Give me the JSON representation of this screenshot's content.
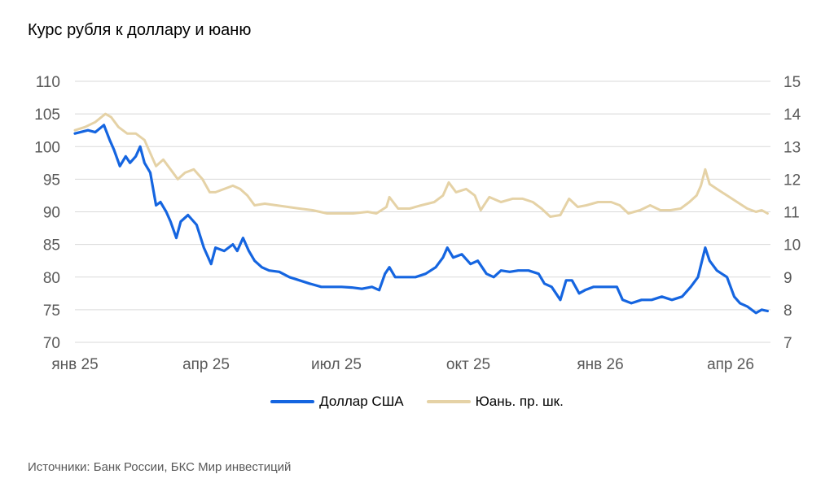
{
  "title": "Курс рубля к доллару и юаню",
  "source": "Источники: Банк России, БКС Мир инвестиций",
  "colors": {
    "usd": "#1565E0",
    "cny": "#E5D2A6",
    "grid": "#D9D9D9",
    "tick": "#595959"
  },
  "chart_data": {
    "type": "line",
    "x_ticks": [
      "янв 25",
      "апр 25",
      "июл 25",
      "окт 25",
      "янв 26",
      "апр 26"
    ],
    "y_left": {
      "ticks": [
        70,
        75,
        80,
        85,
        90,
        95,
        100,
        105,
        110
      ],
      "ylim": [
        70,
        110
      ]
    },
    "y_right": {
      "ticks": [
        7,
        8,
        9,
        10,
        11,
        12,
        13,
        14,
        15
      ],
      "ylim": [
        7,
        15
      ]
    },
    "grid": true,
    "legend_position": "bottom",
    "series": [
      {
        "name": "Доллар США",
        "axis": "left",
        "points": [
          [
            "2025-01-01",
            102.0
          ],
          [
            "2025-01-10",
            102.5
          ],
          [
            "2025-01-15",
            102.2
          ],
          [
            "2025-01-21",
            103.3
          ],
          [
            "2025-01-25",
            101.0
          ],
          [
            "2025-01-28",
            99.5
          ],
          [
            "2025-02-01",
            97.0
          ],
          [
            "2025-02-05",
            98.5
          ],
          [
            "2025-02-08",
            97.5
          ],
          [
            "2025-02-12",
            98.5
          ],
          [
            "2025-02-15",
            100.0
          ],
          [
            "2025-02-18",
            97.5
          ],
          [
            "2025-02-22",
            96.0
          ],
          [
            "2025-02-26",
            91.0
          ],
          [
            "2025-03-01",
            91.5
          ],
          [
            "2025-03-05",
            90.0
          ],
          [
            "2025-03-08",
            88.5
          ],
          [
            "2025-03-12",
            86.0
          ],
          [
            "2025-03-15",
            88.5
          ],
          [
            "2025-03-20",
            89.5
          ],
          [
            "2025-03-26",
            88.0
          ],
          [
            "2025-03-31",
            84.5
          ],
          [
            "2025-04-05",
            82.0
          ],
          [
            "2025-04-08",
            84.5
          ],
          [
            "2025-04-14",
            84.0
          ],
          [
            "2025-04-20",
            85.0
          ],
          [
            "2025-04-23",
            84.0
          ],
          [
            "2025-04-27",
            86.0
          ],
          [
            "2025-05-01",
            84.0
          ],
          [
            "2025-05-05",
            82.5
          ],
          [
            "2025-05-10",
            81.5
          ],
          [
            "2025-05-15",
            81.0
          ],
          [
            "2025-05-22",
            80.8
          ],
          [
            "2025-05-29",
            80.0
          ],
          [
            "2025-06-05",
            79.5
          ],
          [
            "2025-06-12",
            79.0
          ],
          [
            "2025-06-20",
            78.5
          ],
          [
            "2025-06-27",
            78.5
          ],
          [
            "2025-07-04",
            78.5
          ],
          [
            "2025-07-11",
            78.4
          ],
          [
            "2025-07-18",
            78.2
          ],
          [
            "2025-07-25",
            78.5
          ],
          [
            "2025-07-30",
            78.0
          ],
          [
            "2025-08-03",
            80.5
          ],
          [
            "2025-08-06",
            81.5
          ],
          [
            "2025-08-10",
            80.0
          ],
          [
            "2025-08-17",
            80.0
          ],
          [
            "2025-08-24",
            80.0
          ],
          [
            "2025-08-31",
            80.5
          ],
          [
            "2025-09-07",
            81.5
          ],
          [
            "2025-09-12",
            83.0
          ],
          [
            "2025-09-15",
            84.5
          ],
          [
            "2025-09-19",
            83.0
          ],
          [
            "2025-09-25",
            83.5
          ],
          [
            "2025-10-01",
            82.0
          ],
          [
            "2025-10-06",
            82.5
          ],
          [
            "2025-10-12",
            80.5
          ],
          [
            "2025-10-17",
            80.0
          ],
          [
            "2025-10-22",
            81.0
          ],
          [
            "2025-10-28",
            80.8
          ],
          [
            "2025-11-03",
            81.0
          ],
          [
            "2025-11-10",
            81.0
          ],
          [
            "2025-11-17",
            80.5
          ],
          [
            "2025-11-21",
            79.0
          ],
          [
            "2025-11-26",
            78.5
          ],
          [
            "2025-12-02",
            76.5
          ],
          [
            "2025-12-06",
            79.5
          ],
          [
            "2025-12-10",
            79.5
          ],
          [
            "2025-12-15",
            77.5
          ],
          [
            "2025-12-19",
            78.0
          ],
          [
            "2025-12-25",
            78.5
          ],
          [
            "2026-01-03",
            78.5
          ],
          [
            "2026-01-10",
            78.5
          ],
          [
            "2026-01-14",
            76.5
          ],
          [
            "2026-01-20",
            76.0
          ],
          [
            "2026-01-27",
            76.5
          ],
          [
            "2026-02-03",
            76.5
          ],
          [
            "2026-02-10",
            77.0
          ],
          [
            "2026-02-17",
            76.5
          ],
          [
            "2026-02-24",
            77.0
          ],
          [
            "2026-03-02",
            78.5
          ],
          [
            "2026-03-07",
            80.0
          ],
          [
            "2026-03-12",
            84.5
          ],
          [
            "2026-03-15",
            82.5
          ],
          [
            "2026-03-20",
            81.0
          ],
          [
            "2026-03-27",
            80.0
          ],
          [
            "2026-04-01",
            77.0
          ],
          [
            "2026-04-05",
            76.0
          ],
          [
            "2026-04-10",
            75.5
          ],
          [
            "2026-04-16",
            74.5
          ],
          [
            "2026-04-20",
            75.0
          ],
          [
            "2026-04-24",
            74.8
          ]
        ]
      },
      {
        "name": "Юань. пр. шк.",
        "axis": "right",
        "points": [
          [
            "2025-01-01",
            13.5
          ],
          [
            "2025-01-08",
            13.6
          ],
          [
            "2025-01-15",
            13.75
          ],
          [
            "2025-01-22",
            14.0
          ],
          [
            "2025-01-26",
            13.9
          ],
          [
            "2025-01-31",
            13.6
          ],
          [
            "2025-02-06",
            13.4
          ],
          [
            "2025-02-12",
            13.4
          ],
          [
            "2025-02-18",
            13.2
          ],
          [
            "2025-02-22",
            12.8
          ],
          [
            "2025-02-26",
            12.4
          ],
          [
            "2025-03-03",
            12.6
          ],
          [
            "2025-03-08",
            12.3
          ],
          [
            "2025-03-13",
            12.0
          ],
          [
            "2025-03-18",
            12.2
          ],
          [
            "2025-03-24",
            12.3
          ],
          [
            "2025-03-30",
            12.0
          ],
          [
            "2025-04-04",
            11.6
          ],
          [
            "2025-04-08",
            11.6
          ],
          [
            "2025-04-14",
            11.7
          ],
          [
            "2025-04-20",
            11.8
          ],
          [
            "2025-04-25",
            11.7
          ],
          [
            "2025-04-30",
            11.5
          ],
          [
            "2025-05-05",
            11.2
          ],
          [
            "2025-05-12",
            11.25
          ],
          [
            "2025-05-20",
            11.2
          ],
          [
            "2025-05-28",
            11.15
          ],
          [
            "2025-06-05",
            11.1
          ],
          [
            "2025-06-14",
            11.05
          ],
          [
            "2025-06-24",
            10.95
          ],
          [
            "2025-07-02",
            10.95
          ],
          [
            "2025-07-12",
            10.95
          ],
          [
            "2025-07-22",
            11.0
          ],
          [
            "2025-07-28",
            10.95
          ],
          [
            "2025-08-04",
            11.15
          ],
          [
            "2025-08-06",
            11.45
          ],
          [
            "2025-08-12",
            11.1
          ],
          [
            "2025-08-20",
            11.1
          ],
          [
            "2025-08-28",
            11.2
          ],
          [
            "2025-09-06",
            11.3
          ],
          [
            "2025-09-12",
            11.5
          ],
          [
            "2025-09-16",
            11.9
          ],
          [
            "2025-09-21",
            11.6
          ],
          [
            "2025-09-28",
            11.7
          ],
          [
            "2025-10-04",
            11.5
          ],
          [
            "2025-10-08",
            11.05
          ],
          [
            "2025-10-14",
            11.45
          ],
          [
            "2025-10-22",
            11.3
          ],
          [
            "2025-10-30",
            11.4
          ],
          [
            "2025-11-06",
            11.4
          ],
          [
            "2025-11-13",
            11.3
          ],
          [
            "2025-11-19",
            11.1
          ],
          [
            "2025-11-25",
            10.85
          ],
          [
            "2025-12-02",
            10.9
          ],
          [
            "2025-12-08",
            11.4
          ],
          [
            "2025-12-14",
            11.15
          ],
          [
            "2025-12-20",
            11.2
          ],
          [
            "2025-12-28",
            11.3
          ],
          [
            "2026-01-06",
            11.3
          ],
          [
            "2026-01-12",
            11.2
          ],
          [
            "2026-01-18",
            10.95
          ],
          [
            "2026-01-26",
            11.05
          ],
          [
            "2026-02-02",
            11.2
          ],
          [
            "2026-02-09",
            11.05
          ],
          [
            "2026-02-16",
            11.05
          ],
          [
            "2026-02-23",
            11.1
          ],
          [
            "2026-03-01",
            11.3
          ],
          [
            "2026-03-06",
            11.5
          ],
          [
            "2026-03-09",
            11.8
          ],
          [
            "2026-03-12",
            12.3
          ],
          [
            "2026-03-15",
            11.85
          ],
          [
            "2026-03-20",
            11.7
          ],
          [
            "2026-03-27",
            11.5
          ],
          [
            "2026-04-03",
            11.3
          ],
          [
            "2026-04-10",
            11.1
          ],
          [
            "2026-04-16",
            11.0
          ],
          [
            "2026-04-20",
            11.05
          ],
          [
            "2026-04-24",
            10.95
          ]
        ]
      }
    ]
  }
}
